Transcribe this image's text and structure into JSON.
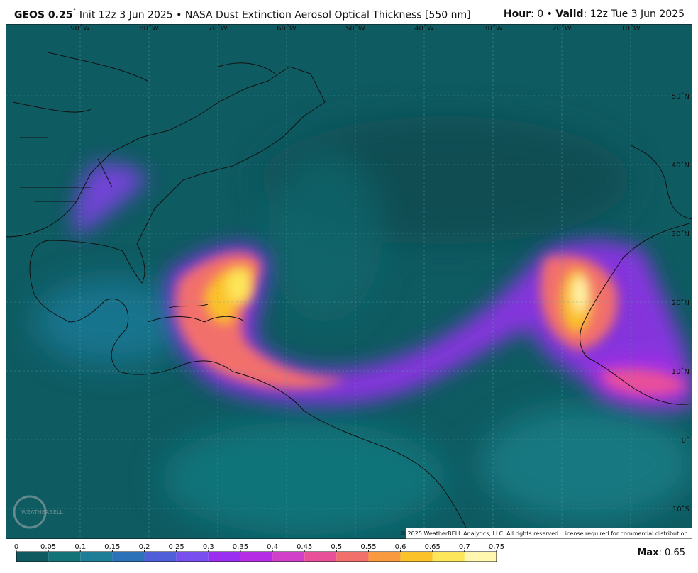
{
  "header": {
    "model": "GEOS 0.25",
    "degree": "˚",
    "description": "Init 12z 3 Jun 2025 • NASA Dust Extinction Aerosol Optical Thickness [550 nm]",
    "hour_label": "Hour",
    "hour_value": ": 0 •",
    "valid_label": "Valid",
    "valid_value": ": 12z Tue 3 Jun 2025"
  },
  "map": {
    "longitude_labels": [
      "90˚W",
      "80˚W",
      "70˚W",
      "60˚W",
      "50˚W",
      "40˚W",
      "30˚W",
      "20˚W",
      "10˚W"
    ],
    "latitude_labels": [
      "50˚N",
      "40˚N",
      "30˚N",
      "20˚N",
      "10˚N",
      "0˚",
      "10˚S"
    ],
    "logo": "WEATHERBELL",
    "copyright": "© 2025 WeatherBELL Analytics, LLC. All rights reserved. License required for commercial distribution."
  },
  "colorbar": {
    "ticks": [
      0,
      0.05,
      0.1,
      0.15,
      0.2,
      0.25,
      0.3,
      0.35,
      0.4,
      0.45,
      0.5,
      0.55,
      0.6,
      0.65,
      0.7,
      0.75
    ],
    "colors": [
      "#0f5a60",
      "#137377",
      "#1e7e98",
      "#2b72b8",
      "#4f5fd8",
      "#7a4ff0",
      "#9a2ff2",
      "#b52ee6",
      "#d040c8",
      "#e8509a",
      "#f2706c",
      "#f89a40",
      "#fbc22a",
      "#fde65a",
      "#fff6b0"
    ],
    "max_label": "Max",
    "max_value": 0.65
  }
}
